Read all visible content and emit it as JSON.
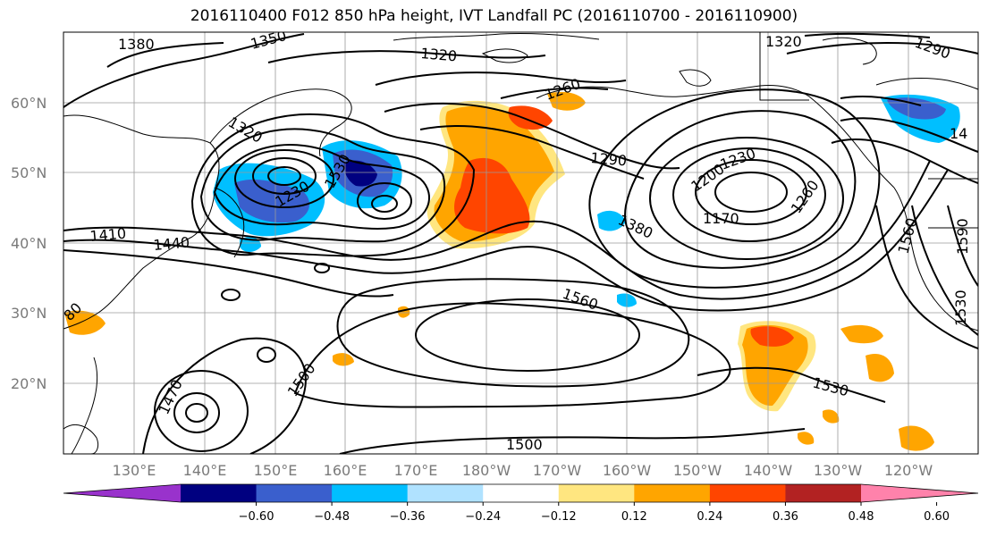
{
  "title": "2016110400 F012 850 hPa height, IVT Landfall PC (2016110700 - 2016110900)",
  "lat_labels": [
    "60°N",
    "50°N",
    "40°N",
    "30°N",
    "20°N"
  ],
  "lon_labels": [
    "130°E",
    "140°E",
    "150°E",
    "160°E",
    "170°E",
    "180°W",
    "170°W",
    "160°W",
    "150°W",
    "140°W",
    "130°W",
    "120°W"
  ],
  "colorbar": {
    "ticks": [
      "−0.60",
      "−0.48",
      "−0.36",
      "−0.24",
      "−0.12",
      "0.12",
      "0.24",
      "0.36",
      "0.48",
      "0.60"
    ],
    "colors": [
      "#9932cc",
      "#000080",
      "#3a5fcd",
      "#00bfff",
      "#b0e2ff",
      "#ffffff",
      "#ffe680",
      "#ffa500",
      "#ff4500",
      "#b22222",
      "#ff82ab"
    ]
  },
  "contour_labels": [
    {
      "text": "1380"
    },
    {
      "text": "1350"
    },
    {
      "text": "1320"
    },
    {
      "text": "1320"
    },
    {
      "text": "1290"
    },
    {
      "text": "1260"
    },
    {
      "text": "1320"
    },
    {
      "text": "1290"
    },
    {
      "text": "1230"
    },
    {
      "text": "1200"
    },
    {
      "text": "1170"
    },
    {
      "text": "1260"
    },
    {
      "text": "1230"
    },
    {
      "text": "1410"
    },
    {
      "text": "1440"
    },
    {
      "text": "1380"
    },
    {
      "text": "1560"
    },
    {
      "text": "1560"
    },
    {
      "text": "1590"
    },
    {
      "text": "1530"
    },
    {
      "text": "1500"
    },
    {
      "text": "1470"
    },
    {
      "text": "1530"
    },
    {
      "text": "1500"
    },
    {
      "text": "14"
    },
    {
      "text": "80"
    },
    {
      "text": "1530"
    }
  ]
}
